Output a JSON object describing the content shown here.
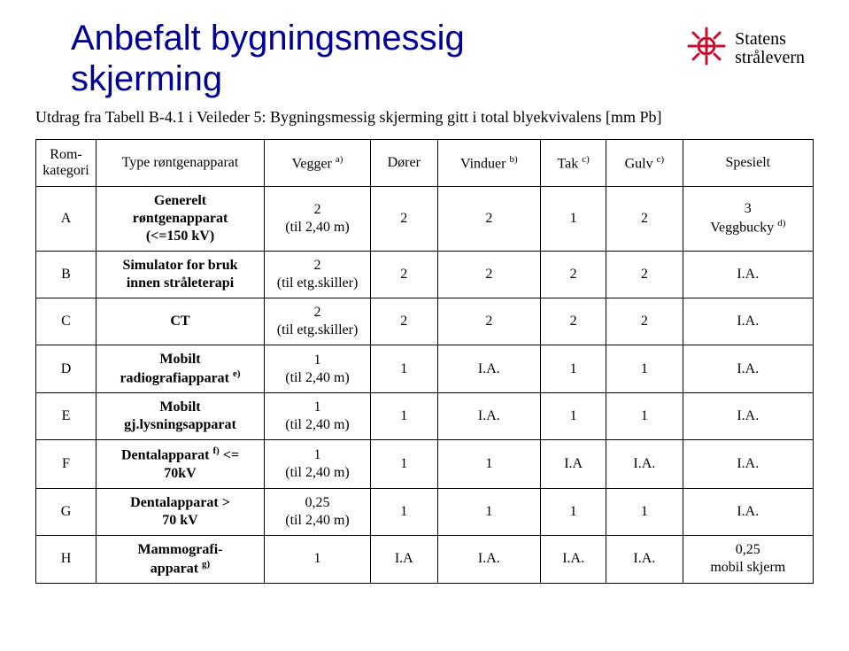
{
  "title_line1": "Anbefalt bygningsmessig",
  "title_line2": "skjerming",
  "logo_line1": "Statens",
  "logo_line2": "strålevern",
  "subtitle": "Utdrag fra Tabell B-4.1 i Veileder 5: Bygningsmessig skjerming gitt i total blyekvivalens [mm Pb]",
  "headers": {
    "col1_line1": "Rom-",
    "col1_line2": "kategori",
    "col2": "Type røntgenapparat",
    "col3": "Vegger ",
    "col3_sup": "a)",
    "col4": "Dører",
    "col5": "Vinduer ",
    "col5_sup": "b)",
    "col6": "Tak ",
    "col6_sup": "c)",
    "col7": "Gulv ",
    "col7_sup": "c)",
    "col8": "Spesielt"
  },
  "rows": [
    {
      "cat": "A",
      "type_l1": "Generelt",
      "type_l2": "røntgenapparat",
      "type_l3": "(<=150 kV)",
      "vegger_l1": "2",
      "vegger_l2": "(til 2,40 m)",
      "dorer": "2",
      "vinduer": "2",
      "tak": "1",
      "gulv": "2",
      "spes_l1": "3",
      "spes_l2": "Veggbucky ",
      "spes_l2_sup": "d)"
    },
    {
      "cat": "B",
      "type_l1": "Simulator for bruk",
      "type_l2": "innen stråleterapi",
      "type_l3": "",
      "vegger_l1": "2",
      "vegger_l2": "(til etg.skiller)",
      "dorer": "2",
      "vinduer": "2",
      "tak": "2",
      "gulv": "2",
      "spes_l1": "I.A.",
      "spes_l2": "",
      "spes_l2_sup": ""
    },
    {
      "cat": "C",
      "type_l1": "CT",
      "type_l2": "",
      "type_l3": "",
      "vegger_l1": "2",
      "vegger_l2": "(til etg.skiller)",
      "dorer": "2",
      "vinduer": "2",
      "tak": "2",
      "gulv": "2",
      "spes_l1": "I.A.",
      "spes_l2": "",
      "spes_l2_sup": ""
    },
    {
      "cat": "D",
      "type_l1": "Mobilt",
      "type_l2": "radiografiapparat ",
      "type_l2_sup": "e)",
      "type_l3": "",
      "vegger_l1": "1",
      "vegger_l2": "(til 2,40 m)",
      "dorer": "1",
      "vinduer": "I.A.",
      "tak": "1",
      "gulv": "1",
      "spes_l1": "I.A.",
      "spes_l2": "",
      "spes_l2_sup": ""
    },
    {
      "cat": "E",
      "type_l1": "Mobilt",
      "type_l2": "gj.lysningsapparat",
      "type_l3": "",
      "vegger_l1": "1",
      "vegger_l2": "(til 2,40 m)",
      "dorer": "1",
      "vinduer": "I.A.",
      "tak": "1",
      "gulv": "1",
      "spes_l1": "I.A.",
      "spes_l2": "",
      "spes_l2_sup": ""
    },
    {
      "cat": "F",
      "type_l1": "Dentalapparat ",
      "type_l1_sup": "f)",
      "type_l1_after": " <=",
      "type_l2": "70kV",
      "type_l3": "",
      "vegger_l1": "1",
      "vegger_l2": "(til 2,40 m)",
      "dorer": "1",
      "vinduer": "1",
      "tak": "I.A",
      "gulv": "I.A.",
      "spes_l1": "I.A.",
      "spes_l2": "",
      "spes_l2_sup": ""
    },
    {
      "cat": "G",
      "type_l1": "Dentalapparat      >",
      "type_l2": "70 kV",
      "type_l3": "",
      "vegger_l1": "0,25",
      "vegger_l2": "(til 2,40 m)",
      "dorer": "1",
      "vinduer": "1",
      "tak": "1",
      "gulv": "1",
      "spes_l1": "I.A.",
      "spes_l2": "",
      "spes_l2_sup": ""
    },
    {
      "cat": "H",
      "type_l1": "Mammografi-",
      "type_l2": "apparat ",
      "type_l2_sup": "g)",
      "type_l3": "",
      "vegger_l1": "1",
      "vegger_l2": "",
      "dorer": "I.A",
      "vinduer": "I.A.",
      "tak": "I.A.",
      "gulv": "I.A.",
      "spes_l1": "0,25",
      "spes_l2": "mobil skjerm",
      "spes_l2_sup": ""
    }
  ]
}
